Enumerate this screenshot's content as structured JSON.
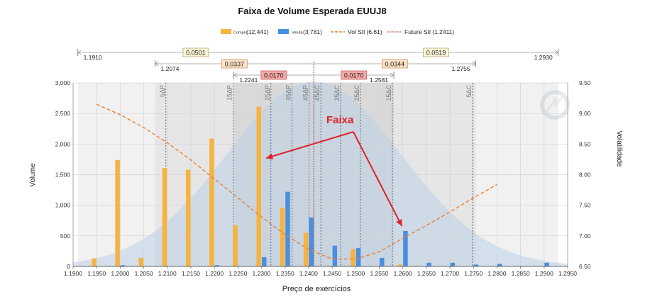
{
  "chart_data": {
    "type": "bar",
    "title": "Faixa de Volume Esperada  EUUJ8",
    "xlabel": "Preço de exercícios",
    "ylabel": "Volume",
    "y2label": "Volatilidade",
    "xlim": [
      1.19,
      1.295
    ],
    "ylim": [
      0,
      3000
    ],
    "y2lim": [
      6.5,
      9.5
    ],
    "x_ticks": [
      "1.1900",
      "1.1950",
      "1.2000",
      "1.2050",
      "1.2100",
      "1.2150",
      "1.2200",
      "1.2250",
      "1.2300",
      "1.2350",
      "1.2400",
      "1.2450",
      "1.2500",
      "1.2550",
      "1.2600",
      "1.2650",
      "1.2700",
      "1.2750",
      "1.2800",
      "1.2850",
      "1.2900",
      "1.2950"
    ],
    "y_ticks": [
      "0",
      "500",
      "1,000",
      "1,500",
      "2,000",
      "2,500",
      "3,000"
    ],
    "y2_ticks": [
      "6.50",
      "7.00",
      "7.50",
      "8.00",
      "8.50",
      "9.00",
      "9.50"
    ],
    "legend": {
      "placement": "top-center",
      "compra": {
        "small": "Compra",
        "count": "(12,441)",
        "color": "#f5b342"
      },
      "venda": {
        "small": "Venda",
        "count": "(3,781)",
        "color": "#4a8ee0"
      },
      "vol": {
        "label": "Vol Stl (6.61)",
        "color": "#e8803a"
      },
      "future": {
        "label": "Future Stl (1.2411)",
        "color": "#c03030"
      }
    },
    "series": [
      {
        "name": "Compra",
        "color": "#f5b342",
        "x": [
          1.195,
          1.2,
          1.205,
          1.21,
          1.215,
          1.22,
          1.225,
          1.23,
          1.235,
          1.24,
          1.25,
          1.26
        ],
        "values": [
          130,
          1740,
          140,
          1610,
          1580,
          2090,
          670,
          2610,
          960,
          550,
          280,
          30
        ]
      },
      {
        "name": "Venda",
        "color": "#4a8ee0",
        "x": [
          1.2,
          1.22,
          1.23,
          1.235,
          1.24,
          1.245,
          1.25,
          1.255,
          1.26,
          1.265,
          1.27,
          1.275,
          1.28,
          1.29
        ],
        "values": [
          20,
          20,
          150,
          1220,
          800,
          340,
          300,
          140,
          580,
          60,
          60,
          30,
          40,
          60
        ]
      },
      {
        "name": "Vol Stl (6.61)",
        "type": "line",
        "axis": "y2",
        "color": "#e8803a",
        "x": [
          1.195,
          1.2,
          1.205,
          1.21,
          1.215,
          1.22,
          1.225,
          1.23,
          1.235,
          1.24,
          1.245,
          1.25,
          1.255,
          1.26,
          1.265,
          1.27,
          1.275,
          1.28
        ],
        "values": [
          9.15,
          8.98,
          8.77,
          8.52,
          8.24,
          7.93,
          7.62,
          7.31,
          7.02,
          6.78,
          6.62,
          6.62,
          6.74,
          6.96,
          7.17,
          7.39,
          7.62,
          7.84
        ]
      }
    ],
    "future_stl": 1.2411,
    "delta_lines": [
      {
        "x": 1.2097,
        "label": "5ΔP"
      },
      {
        "x": 1.224,
        "label": "15ΔP"
      },
      {
        "x": 1.232,
        "label": "25ΔP"
      },
      {
        "x": 1.2365,
        "label": "35ΔP"
      },
      {
        "x": 1.2401,
        "label": "45ΔP"
      },
      {
        "x": 1.2426,
        "label": "45ΔC"
      },
      {
        "x": 1.2468,
        "label": "35ΔC"
      },
      {
        "x": 1.251,
        "label": "25ΔC"
      },
      {
        "x": 1.2578,
        "label": "15ΔC"
      },
      {
        "x": 1.2748,
        "label": "5ΔC"
      }
    ],
    "ranges": [
      {
        "from": 1.191,
        "to": 1.293,
        "width": "0.0501",
        "width2": "0.0519",
        "left_label": "1.1910",
        "right_label": "1.2930",
        "box_fill": "#fdf6d8",
        "box_stroke": "#b8a878"
      },
      {
        "from": 1.2074,
        "to": 1.2755,
        "width": "0.0337",
        "width2": "0.0344",
        "left_label": "1.2074",
        "right_label": "1.2755",
        "box_fill": "#fbe1c6",
        "box_stroke": "#c9966a"
      },
      {
        "from": 1.2241,
        "to": 1.2581,
        "width": "0.0170",
        "width2": "0.0170",
        "left_label": "1.2241",
        "right_label": "1.2581",
        "box_fill": "#f7a6a6",
        "box_stroke": "#c26a6a"
      }
    ],
    "annotation": {
      "text": "Faixa",
      "color": "#e0202a",
      "from": [
        1.2495,
        2200
      ],
      "to_1": [
        1.231,
        1770
      ],
      "to_2": [
        1.2598,
        660
      ]
    },
    "bell_peak": 3020,
    "bell_mean": 1.2411,
    "bell_sigma": 0.0185
  }
}
